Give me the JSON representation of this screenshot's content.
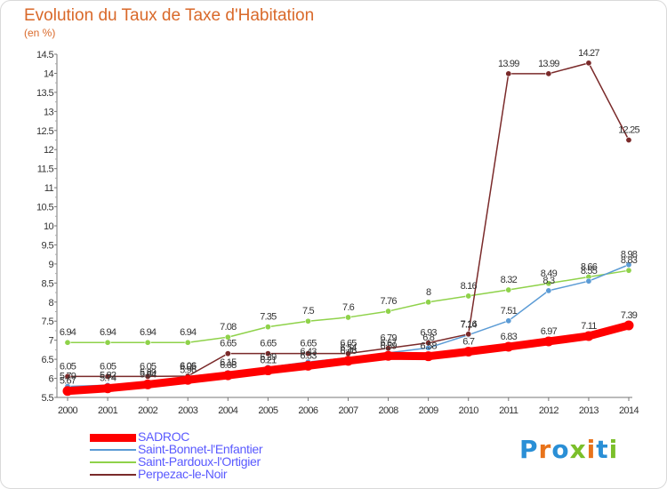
{
  "title": "Evolution du Taux de Taxe d'Habitation",
  "unit": "(en %)",
  "logo": {
    "text": "Proxiti",
    "colors": [
      "#2a8fd6",
      "#e8731b",
      "#2a8fd6",
      "#7bbf2a",
      "#e8731b",
      "#2a8fd6",
      "#7bbf2a"
    ]
  },
  "chart_data": {
    "type": "line",
    "title": "Evolution du Taux de Taxe d'Habitation",
    "ylabel": "(en %)",
    "xlabel": "",
    "x": [
      "2000",
      "2001",
      "2002",
      "2003",
      "2004",
      "2005",
      "2006",
      "2007",
      "2008",
      "2009",
      "2010",
      "2011",
      "2012",
      "2013",
      "2014"
    ],
    "ylim": [
      5.5,
      14.5
    ],
    "yticks": [
      "5.5",
      "6",
      "6.5",
      "7",
      "7.5",
      "8",
      "8.5",
      "9",
      "9.5",
      "10",
      "10.5",
      "11",
      "11.5",
      "12",
      "12.5",
      "13",
      "13.5",
      "14",
      "14.5"
    ],
    "grid": false,
    "legend_position": "bottom-left",
    "series": [
      {
        "name": "SADROC",
        "color": "#ff0000",
        "width": 9,
        "values": [
          5.67,
          5.74,
          5.84,
          5.96,
          6.08,
          6.21,
          6.33,
          6.46,
          6.59,
          6.58,
          6.7,
          6.83,
          6.97,
          7.11,
          7.39
        ],
        "labels": [
          "5.67",
          "5.74",
          "5.84",
          "5.96",
          "6.08",
          "6.21",
          "6.33",
          "6.46",
          "6.59",
          "6.58",
          "6.7",
          "6.83",
          "6.97",
          "7.11",
          "7.39"
        ]
      },
      {
        "name": "Saint-Bonnet-l'Enfantier",
        "color": "#5b9bd5",
        "width": 1.5,
        "values": [
          5.79,
          5.82,
          5.89,
          6.05,
          6.15,
          6.29,
          6.43,
          6.54,
          6.67,
          6.8,
          7.14,
          7.51,
          8.3,
          8.55,
          8.98
        ],
        "labels": [
          "5.79",
          "5.82",
          "5.89",
          "6.05",
          "6.15",
          "6.29",
          "6.43",
          "6.54",
          "6.67",
          "6.8",
          "7.14",
          "7.51",
          "8.3",
          "8.55",
          "8.98"
        ]
      },
      {
        "name": "Saint-Pardoux-l'Ortigier",
        "color": "#8fd24a",
        "width": 1.5,
        "values": [
          6.94,
          6.94,
          6.94,
          6.94,
          7.08,
          7.35,
          7.5,
          7.6,
          7.76,
          8.0,
          8.16,
          8.32,
          8.49,
          8.66,
          8.83
        ],
        "labels": [
          "6.94",
          "6.94",
          "6.94",
          "6.94",
          "7.08",
          "7.35",
          "7.5",
          "7.6",
          "7.76",
          "8",
          "8.16",
          "8.32",
          "8.49",
          "8.66",
          "8.83"
        ]
      },
      {
        "name": "Perpezac-le-Noir",
        "color": "#7a2a2a",
        "width": 1.5,
        "values": [
          6.05,
          6.05,
          6.05,
          6.06,
          6.65,
          6.65,
          6.65,
          6.65,
          6.79,
          6.93,
          7.16,
          13.99,
          13.99,
          14.27,
          12.25
        ],
        "labels": [
          "6.05",
          "6.05",
          "6.05",
          "6.06",
          "6.65",
          "6.65",
          "6.65",
          "6.65",
          "6.79",
          "6.93",
          "7.16",
          "13.99",
          "13.99",
          "14.27",
          "12.25"
        ]
      }
    ]
  }
}
